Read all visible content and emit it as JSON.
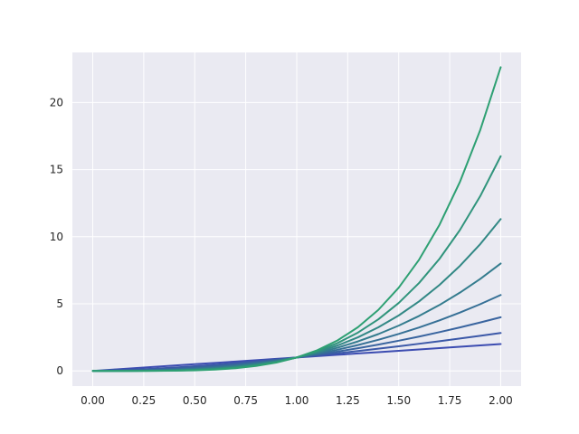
{
  "chart_data": {
    "type": "line",
    "title": "",
    "xlabel": "",
    "ylabel": "",
    "xlim": [
      -0.1,
      2.1
    ],
    "ylim": [
      -1.13,
      23.73
    ],
    "grid": true,
    "style": "seaborn-darkgrid",
    "background_color": "#EAEAF2",
    "grid_color": "#FFFFFF",
    "x_ticks": [
      0,
      0.25,
      0.5,
      0.75,
      1.0,
      1.25,
      1.5,
      1.75,
      2.0
    ],
    "x_tick_labels": [
      "0.00",
      "0.25",
      "0.50",
      "0.75",
      "1.00",
      "1.25",
      "1.50",
      "1.75",
      "2.00"
    ],
    "y_ticks": [
      0,
      5,
      10,
      15,
      20
    ],
    "y_tick_labels": [
      "0",
      "5",
      "10",
      "15",
      "20"
    ],
    "x": [
      0,
      0.1,
      0.2,
      0.3,
      0.4,
      0.5,
      0.6,
      0.7,
      0.8,
      0.9,
      1.0,
      1.1,
      1.2,
      1.3,
      1.4,
      1.5,
      1.6,
      1.7,
      1.8,
      1.9,
      2.0
    ],
    "series": [
      {
        "exponent": 1.0,
        "color": "#3C4CB1",
        "values": [
          0,
          0.1,
          0.2,
          0.3,
          0.4,
          0.5,
          0.6,
          0.7,
          0.8,
          0.9,
          1.0,
          1.1,
          1.2,
          1.3,
          1.4,
          1.5,
          1.6,
          1.7,
          1.8,
          1.9,
          2.0
        ]
      },
      {
        "exponent": 1.5,
        "color": "#3B58A8",
        "values": [
          0,
          0.0316,
          0.0894,
          0.1643,
          0.253,
          0.3536,
          0.4648,
          0.5857,
          0.7155,
          0.8538,
          1.0,
          1.1537,
          1.3145,
          1.4822,
          1.6565,
          1.8371,
          2.0239,
          2.2165,
          2.415,
          2.619,
          2.8284
        ]
      },
      {
        "exponent": 2.0,
        "color": "#39649F",
        "values": [
          0,
          0.01,
          0.04,
          0.09,
          0.16,
          0.25,
          0.36,
          0.49,
          0.64,
          0.81,
          1.0,
          1.21,
          1.44,
          1.69,
          1.96,
          2.25,
          2.56,
          2.89,
          3.24,
          3.61,
          4.0
        ]
      },
      {
        "exponent": 2.5,
        "color": "#367096",
        "values": [
          0,
          0.0032,
          0.0179,
          0.0493,
          0.1012,
          0.1768,
          0.2789,
          0.41,
          0.5724,
          0.7684,
          1.0,
          1.2691,
          1.5774,
          1.9268,
          2.3191,
          2.7557,
          3.2382,
          3.7681,
          4.3469,
          4.9761,
          5.6569
        ]
      },
      {
        "exponent": 3.0,
        "color": "#347C8E",
        "values": [
          0,
          0.001,
          0.008,
          0.027,
          0.064,
          0.125,
          0.216,
          0.343,
          0.512,
          0.729,
          1.0,
          1.331,
          1.728,
          2.197,
          2.744,
          3.375,
          4.096,
          4.913,
          5.832,
          6.859,
          8.0
        ]
      },
      {
        "exponent": 3.5,
        "color": "#328885",
        "values": [
          0,
          0.0003,
          0.0036,
          0.0148,
          0.0405,
          0.0884,
          0.1673,
          0.287,
          0.458,
          0.6915,
          1.0,
          1.396,
          1.893,
          2.505,
          3.247,
          4.134,
          5.181,
          6.406,
          7.824,
          9.455,
          11.314
        ]
      },
      {
        "exponent": 4.0,
        "color": "#30947C",
        "values": [
          0,
          0.0001,
          0.0016,
          0.0081,
          0.0256,
          0.0625,
          0.1296,
          0.2401,
          0.4096,
          0.6561,
          1.0,
          1.4641,
          2.0736,
          2.8561,
          3.8416,
          5.0625,
          6.5536,
          8.3521,
          10.4976,
          13.0321,
          16.0
        ]
      },
      {
        "exponent": 4.5,
        "color": "#2EA073",
        "values": [
          0,
          3e-05,
          0.0007,
          0.0044,
          0.0162,
          0.0442,
          0.1004,
          0.2009,
          0.3664,
          0.6224,
          1.0,
          1.5356,
          2.2715,
          3.2561,
          4.5453,
          6.2011,
          8.2912,
          10.8888,
          14.0797,
          17.9623,
          22.6274
        ]
      }
    ]
  }
}
